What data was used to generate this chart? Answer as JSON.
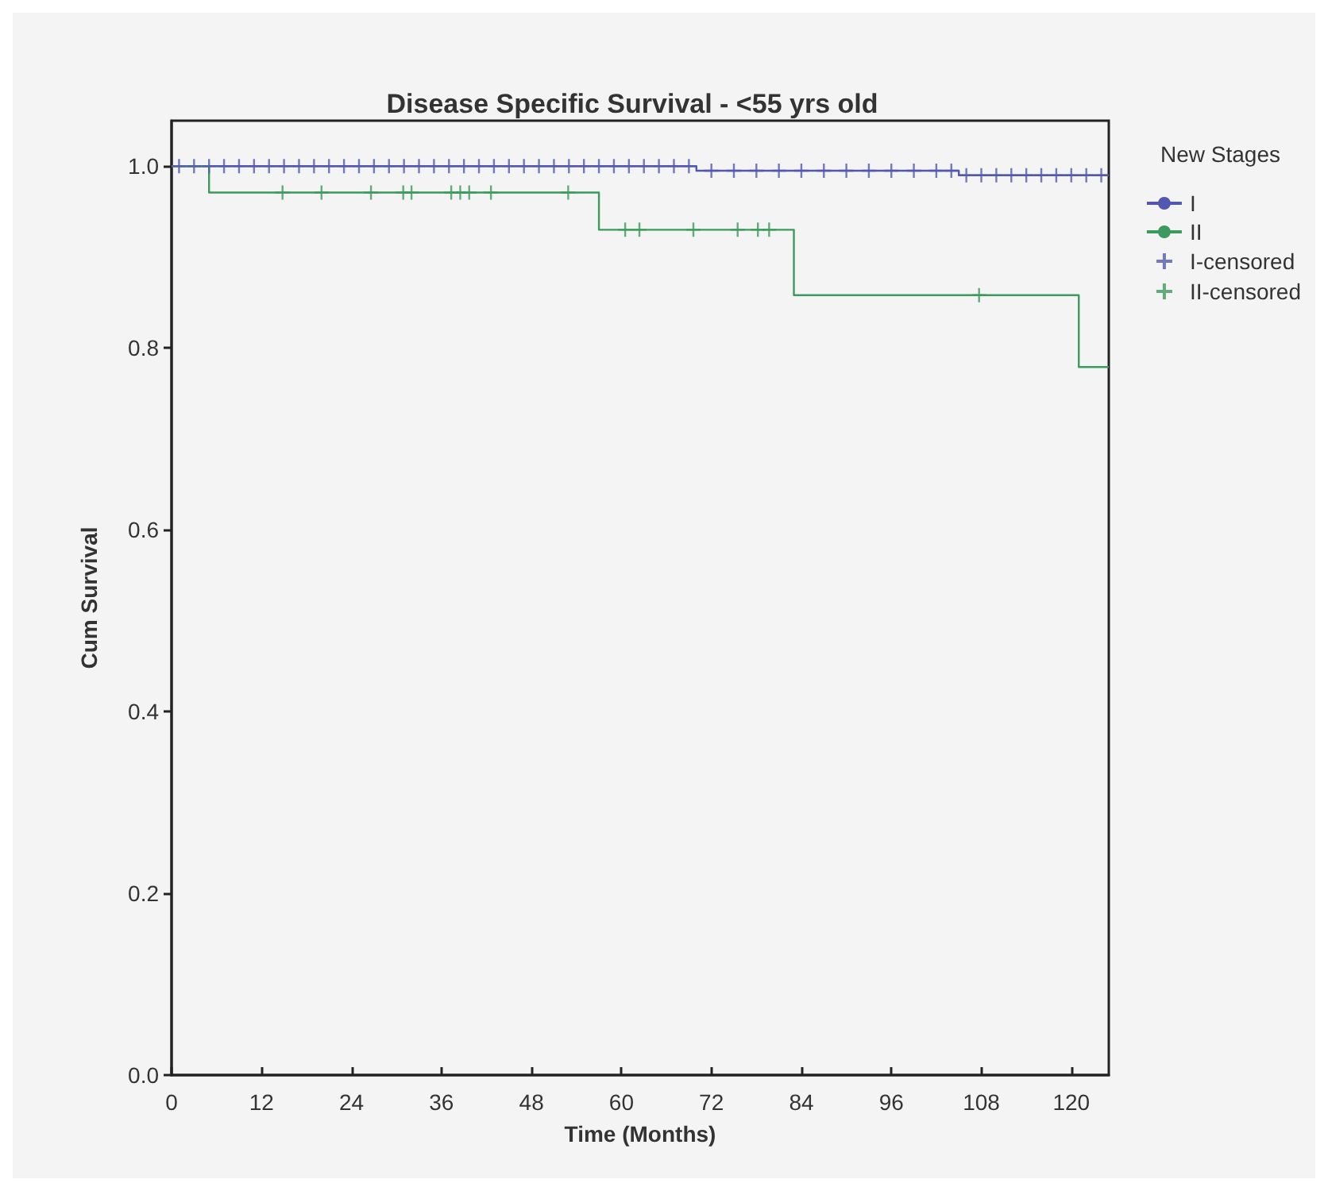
{
  "chart_data": {
    "type": "step",
    "title": "Disease Specific Survival - <55 yrs old",
    "xlabel": "Time (Months)",
    "ylabel": "Cum Survival",
    "legend_title": "New Stages",
    "legend": "top right",
    "grid": false,
    "xlim": [
      0,
      125
    ],
    "xticks": [
      0,
      12,
      24,
      36,
      48,
      60,
      72,
      84,
      96,
      108,
      120
    ],
    "ylim": [
      0,
      1.05
    ],
    "yticks": [
      {
        "value": 0,
        "label": "0.0"
      },
      {
        "value": 0.2,
        "label": "0.2"
      },
      {
        "value": 0.4,
        "label": "0.4"
      },
      {
        "value": 0.6,
        "label": "0.6"
      },
      {
        "value": 0.8,
        "label": "0.8"
      },
      {
        "value": 1,
        "label": "1.0"
      }
    ],
    "series": [
      {
        "name": "I",
        "marker": "none",
        "color": "#5257b0",
        "x": [
          0,
          70,
          105,
          125
        ],
        "values": [
          1,
          0.995,
          0.99,
          0.99
        ]
      },
      {
        "name": "II",
        "marker": "none",
        "color": "#3c9a5c",
        "x": [
          0,
          5,
          57,
          83,
          121,
          125
        ],
        "values": [
          1,
          0.971,
          0.93,
          0.858,
          0.779,
          0.779
        ]
      },
      {
        "name": "I-censored",
        "type": "scatter",
        "marker": "cross",
        "color": "#5257b0",
        "x": [
          1,
          3,
          5,
          7,
          9,
          11,
          13,
          15,
          17,
          19,
          21,
          23,
          25,
          27,
          29,
          31,
          33,
          35,
          37,
          39,
          41,
          43,
          45,
          47,
          49,
          51,
          53,
          55,
          57,
          59,
          61,
          63,
          65,
          67,
          69,
          72,
          75,
          78,
          81,
          84,
          87,
          90,
          93,
          96,
          99,
          102,
          104,
          106,
          108,
          110,
          112,
          114,
          116,
          118,
          120,
          122,
          124
        ],
        "values": [
          1,
          1,
          1,
          1,
          1,
          1,
          1,
          1,
          1,
          1,
          1,
          1,
          1,
          1,
          1,
          1,
          1,
          1,
          1,
          1,
          1,
          1,
          1,
          1,
          1,
          1,
          1,
          1,
          1,
          1,
          1,
          1,
          1,
          1,
          1,
          0.995,
          0.995,
          0.995,
          0.995,
          0.995,
          0.995,
          0.995,
          0.995,
          0.995,
          0.995,
          0.995,
          0.995,
          0.99,
          0.99,
          0.99,
          0.99,
          0.99,
          0.99,
          0.99,
          0.99,
          0.99,
          0.99
        ]
      },
      {
        "name": "II-censored",
        "type": "scatter",
        "marker": "cross",
        "color": "#3c9a5c",
        "x": [
          14.8,
          20,
          26.6,
          30.9,
          32,
          37.3,
          38.5,
          39.7,
          42.6,
          52.9,
          60.5,
          62.4,
          69.6,
          75.5,
          78.2,
          79.7,
          107.7
        ],
        "values": [
          0.971,
          0.971,
          0.971,
          0.971,
          0.971,
          0.971,
          0.971,
          0.971,
          0.971,
          0.971,
          0.93,
          0.93,
          0.93,
          0.93,
          0.93,
          0.93,
          0.858
        ]
      }
    ]
  }
}
